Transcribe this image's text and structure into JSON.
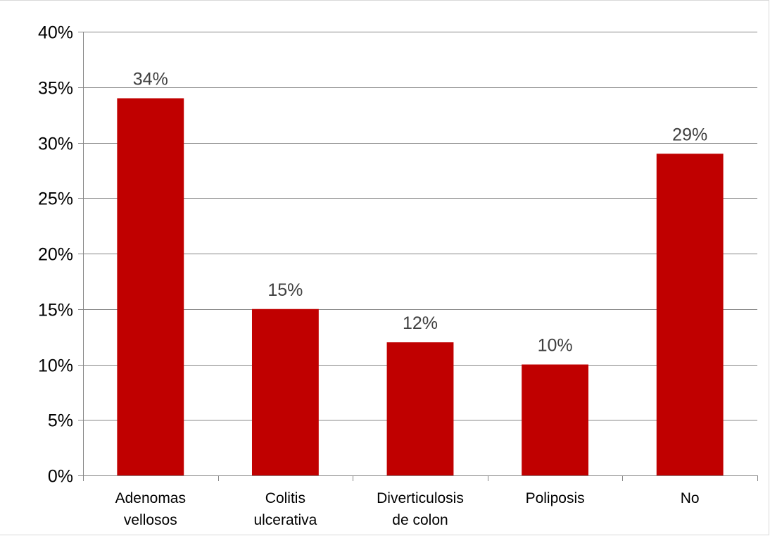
{
  "chart_data": {
    "type": "bar",
    "categories": [
      [
        "Adenomas",
        "vellosos"
      ],
      [
        "Colitis",
        "ulcerativa"
      ],
      [
        "Diverticulosis",
        "de colon"
      ],
      [
        "Poliposis"
      ],
      [
        "No"
      ]
    ],
    "values": [
      34,
      15,
      12,
      10,
      29
    ],
    "data_labels": [
      "34%",
      "15%",
      "12%",
      "10%",
      "29%"
    ],
    "ylim": [
      0,
      40
    ],
    "y_ticks": [
      0,
      5,
      10,
      15,
      20,
      25,
      30,
      35,
      40
    ],
    "y_tick_labels": [
      "0%",
      "5%",
      "10%",
      "15%",
      "20%",
      "25%",
      "30%",
      "35%",
      "40%"
    ],
    "grid": true,
    "legend": "none",
    "bar_color": "#c00000",
    "grid_color": "#868686",
    "data_label_color": "#404040"
  }
}
